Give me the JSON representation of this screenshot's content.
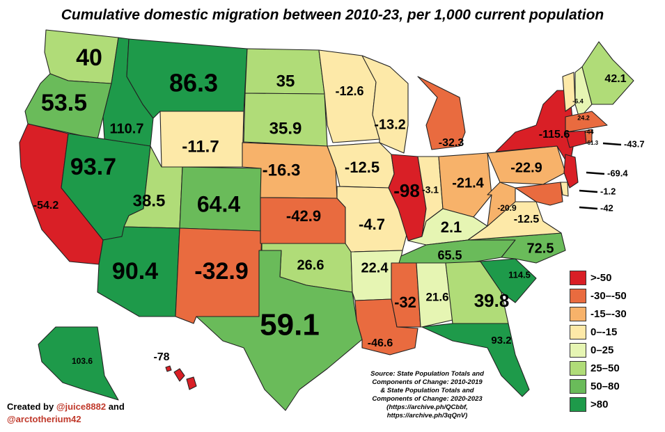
{
  "title": "Cumulative domestic migration between 2010-23, per 1,000 current population",
  "colors": {
    "gt_neg50": "#d91f26",
    "neg30_50": "#e96b3f",
    "neg15_30": "#f7b26a",
    "zero_neg15": "#fde9a8",
    "zero_25": "#e6f5b3",
    "25_50": "#b0dc78",
    "50_80": "#6abb5a",
    "gt80": "#1e9a4a"
  },
  "legend": [
    {
      "label": ">-50",
      "color": "#d91f26"
    },
    {
      "label": "-30–-50",
      "color": "#e96b3f"
    },
    {
      "label": "-15–-30",
      "color": "#f7b26a"
    },
    {
      "label": "0–-15",
      "color": "#fde9a8"
    },
    {
      "label": "0–25",
      "color": "#e6f5b3"
    },
    {
      "label": "25–50",
      "color": "#b0dc78"
    },
    {
      "label": "50–80",
      "color": "#6abb5a"
    },
    {
      "label": ">80",
      "color": "#1e9a4a"
    }
  ],
  "states": {
    "WA": "40",
    "OR": "53.5",
    "CA": "-54.2",
    "ID": "110.7",
    "NV": "93.7",
    "MT": "86.3",
    "WY": "-11.7",
    "UT": "38.5",
    "CO": "64.4",
    "AZ": "90.4",
    "NM": "-32.9",
    "ND": "35",
    "SD": "35.9",
    "NE": "-16.3",
    "KS": "-42.9",
    "OK": "26.6",
    "TX": "59.1",
    "MN": "-12.6",
    "IA": "-12.5",
    "MO": "-4.7",
    "AR": "22.4",
    "LA": "-46.6",
    "WI": "-13.2",
    "IL": "-98",
    "MI": "-32.3",
    "IN": "-3.1",
    "OH": "-21.4",
    "KY": "2.1",
    "TN": "65.5",
    "MS": "-32",
    "AL": "21.6",
    "GA": "39.8",
    "FL": "93.2",
    "SC": "114.5",
    "NC": "72.5",
    "VA": "-12.5",
    "WV": "-20.9",
    "PA": "-22.9",
    "NY": "-115.6",
    "VT": "-6.4",
    "NH": "24.2",
    "ME": "42.1",
    "MA": "-44",
    "CT": "-61.3",
    "RI": "-43.7",
    "NJ": "-69.4",
    "DE": "-1.2",
    "MD": "-42",
    "AK": "103.6",
    "HI": "-78"
  },
  "credits": {
    "prefix": "Created by",
    "handle1": "@juice8882",
    "joiner": "and",
    "handle2": "@arctotherium42"
  },
  "source": [
    "Source: State Population Totals and",
    "Components of Change: 2010-2019",
    "& State Population Totals and",
    "Components of Change: 2020-2023",
    "(https://archive.ph/QCbbf,",
    "https://archive.ph/3qQnV)"
  ]
}
